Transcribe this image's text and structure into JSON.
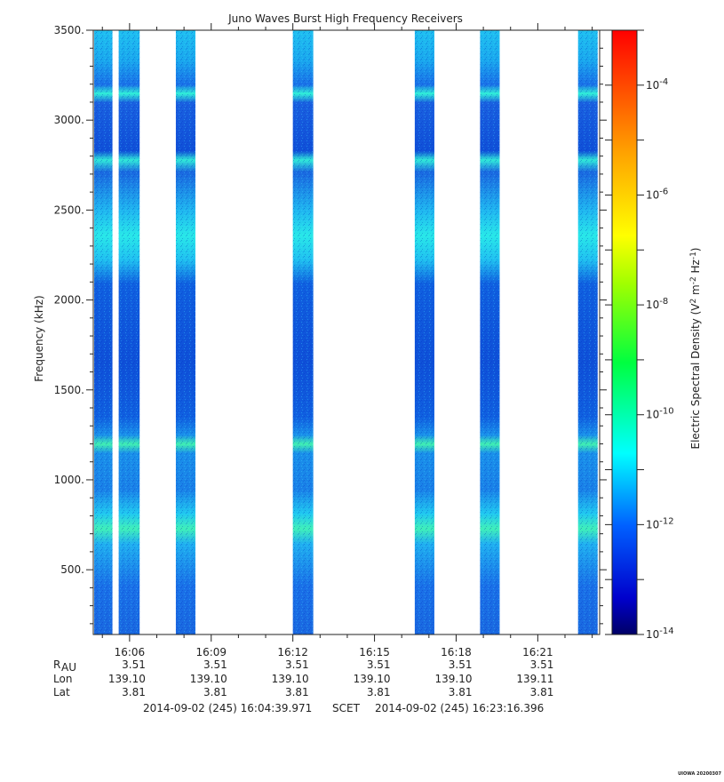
{
  "chart_data": {
    "type": "heatmap",
    "title": "Juno Waves Burst High Frequency Receivers",
    "ylabel": "Frequency (kHz)",
    "ylim": [
      140,
      3500
    ],
    "y_ticks": [
      "3500.",
      "3000.",
      "2500.",
      "2000.",
      "1500.",
      "1000.",
      "500."
    ],
    "y_tick_values": [
      3500,
      3000,
      2500,
      2000,
      1500,
      1000,
      500
    ],
    "x_range_minutes": [
      964.666,
      983.273
    ],
    "x_ticks": [
      "16:06",
      "16:09",
      "16:12",
      "16:15",
      "16:18",
      "16:21"
    ],
    "x_tick_minutes": [
      966,
      969,
      972,
      975,
      978,
      981
    ],
    "ephemeris_rows": [
      {
        "label": "R",
        "sub": "AU",
        "values": [
          "3.51",
          "3.51",
          "3.51",
          "3.51",
          "3.51",
          "3.51"
        ]
      },
      {
        "label": "Lon",
        "sub": "",
        "values": [
          "139.10",
          "139.10",
          "139.10",
          "139.10",
          "139.10",
          "139.11"
        ]
      },
      {
        "label": "Lat",
        "sub": "",
        "values": [
          "3.81",
          "3.81",
          "3.81",
          "3.81",
          "3.81",
          "3.81"
        ]
      }
    ],
    "time_range": {
      "start": "2014-09-02 (245) 16:04:39.971",
      "label": "SCET",
      "end": "2014-09-02 (245) 16:23:16.396"
    },
    "data_bursts_minutes": [
      [
        964.7,
        965.37
      ],
      [
        965.6,
        966.37
      ],
      [
        967.7,
        968.42
      ],
      [
        972.0,
        972.75
      ],
      [
        976.48,
        977.2
      ],
      [
        978.88,
        979.6
      ],
      [
        982.48,
        983.2
      ]
    ],
    "emission_bands_khz": [
      {
        "freq": 3140,
        "level": "bright"
      },
      {
        "freq": 2770,
        "level": "bright"
      },
      {
        "freq": 2450,
        "level": "broad"
      },
      {
        "freq": 2330,
        "level": "broad"
      },
      {
        "freq": 1200,
        "level": "bright"
      },
      {
        "freq": 850,
        "level": "medium"
      },
      {
        "freq": 730,
        "level": "bright"
      }
    ],
    "colorbar": {
      "label": "Electric Spectral Density (V",
      "scale": "log",
      "range_exp": [
        -14,
        -3
      ],
      "ticks": [
        {
          "base": "10",
          "exp": "-4",
          "value": -4
        },
        {
          "base": "10",
          "exp": "-6",
          "value": -6
        },
        {
          "base": "10",
          "exp": "-8",
          "value": -8
        },
        {
          "base": "10",
          "exp": "-10",
          "value": -10
        },
        {
          "base": "10",
          "exp": "-12",
          "value": -12
        },
        {
          "base": "10",
          "exp": "-14",
          "value": -14
        }
      ],
      "colors": [
        "#000066",
        "#0000ff",
        "#0080ff",
        "#00ffff",
        "#00ff00",
        "#ffff00",
        "#ff8000",
        "#ff0000"
      ]
    },
    "footer_tag": "UIOWA 20200307"
  }
}
